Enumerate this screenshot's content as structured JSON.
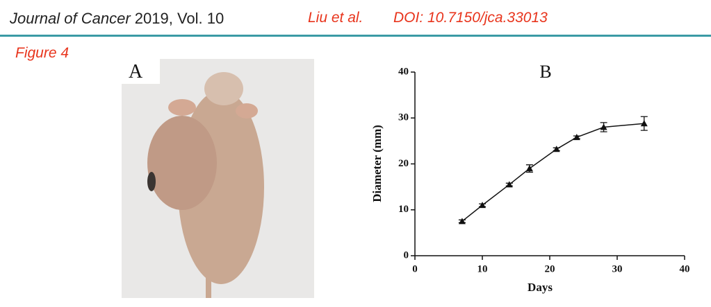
{
  "header": {
    "journal": "Journal of Cancer",
    "volume": "2019, Vol. 10",
    "authors": "Liu et al.",
    "doi": "DOI: 10.7150/jca.33013"
  },
  "figure": {
    "label": "Figure 4",
    "panel_a": {
      "label": "A"
    }
  },
  "chart_data": {
    "type": "line",
    "title": "B",
    "x_label": "Days",
    "y_label": "Diameter (mm)",
    "x": [
      7,
      10,
      14,
      17,
      21,
      24,
      28,
      34
    ],
    "values": [
      7.5,
      11,
      15.5,
      19,
      23.2,
      25.8,
      28,
      28.8
    ],
    "errors": [
      0.3,
      0.3,
      0.3,
      0.8,
      0.3,
      0.3,
      1.0,
      1.5
    ],
    "color": "#111111",
    "xlim": [
      0,
      40
    ],
    "xticks": [
      0,
      10,
      20,
      30,
      40
    ],
    "ylim": [
      0,
      40
    ],
    "yticks": [
      0,
      10,
      20,
      30,
      40
    ]
  }
}
